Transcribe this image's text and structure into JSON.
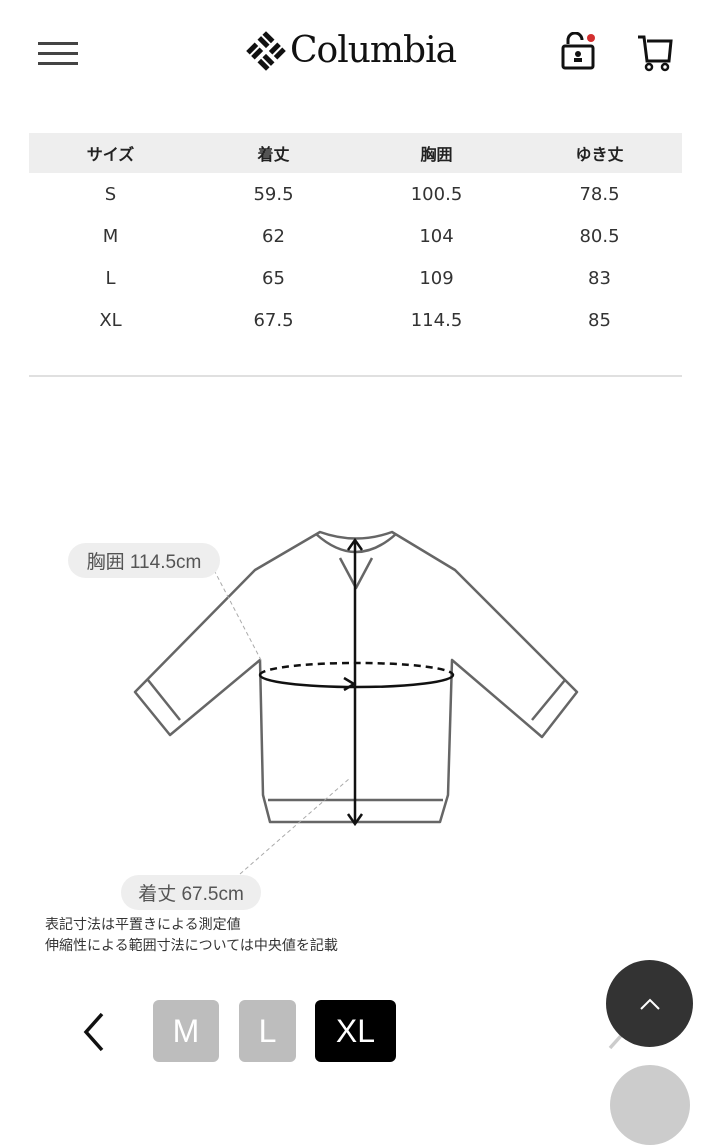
{
  "header": {
    "brand": "Columbia",
    "icons": [
      "menu-icon",
      "account-unlock-icon",
      "cart-icon"
    ],
    "notification_color": "#d32f2f"
  },
  "size_table": {
    "headers": [
      "サイズ",
      "着丈",
      "胸囲",
      "ゆき丈"
    ],
    "rows": [
      [
        "S",
        "59.5",
        "100.5",
        "78.5"
      ],
      [
        "M",
        "62",
        "104",
        "80.5"
      ],
      [
        "L",
        "65",
        "109",
        "83"
      ],
      [
        "XL",
        "67.5",
        "114.5",
        "85"
      ]
    ]
  },
  "diagram": {
    "chest_label": "胸囲 114.5cm",
    "length_label": "着丈 67.5cm"
  },
  "notes": [
    "表記寸法は平置きによる測定値",
    "伸縮性による範囲寸法については中央値を記載"
  ],
  "size_selector": {
    "sizes": [
      "M",
      "L",
      "XL"
    ],
    "selected": "XL",
    "selected_color": "#000000",
    "unselected_color": "#bdbdbd"
  }
}
